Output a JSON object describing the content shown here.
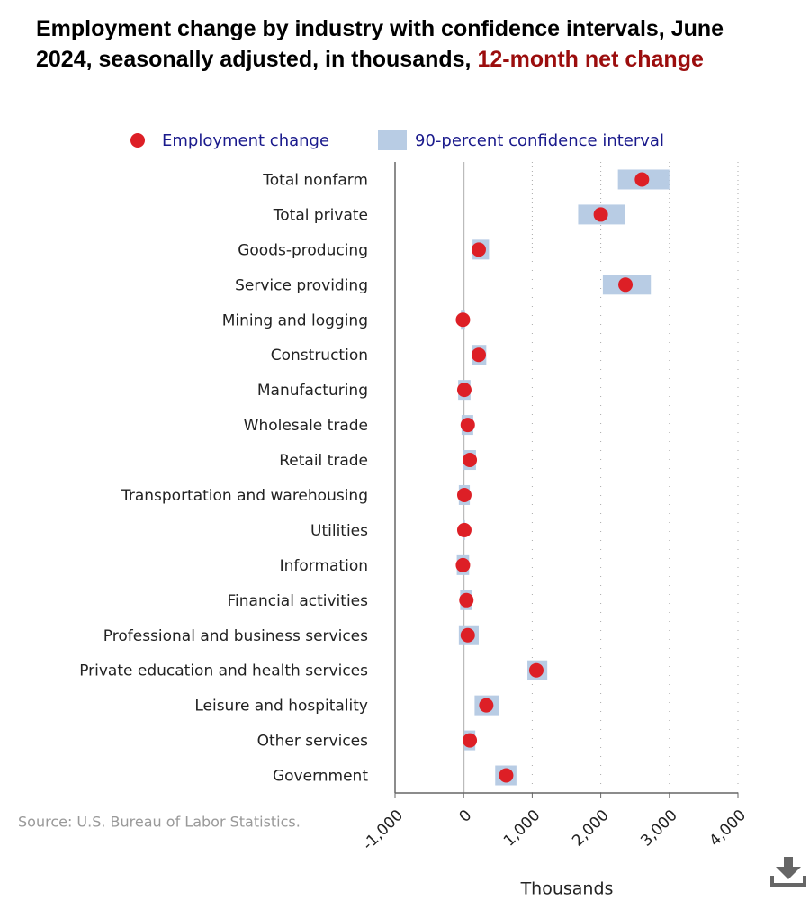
{
  "chart_data": {
    "type": "dot-interval",
    "title": "Employment change by industry with confidence intervals, June 2024, seasonally adjusted, in thousands,",
    "title_highlight": "12-month net change",
    "categories": [
      "Total nonfarm",
      "Total private",
      "Goods-producing",
      "Service providing",
      "Mining and logging",
      "Construction",
      "Manufacturing",
      "Wholesale trade",
      "Retail trade",
      "Transportation and warehousing",
      "Utilities",
      "Information",
      "Financial activities",
      "Professional and business services",
      "Private education and health services",
      "Leisure and hospitality",
      "Other services",
      "Government"
    ],
    "series": [
      {
        "name": "Employment change",
        "color": "#dd1f26",
        "values": [
          2600,
          2000,
          220,
          2360,
          -10,
          220,
          10,
          60,
          90,
          10,
          10,
          -10,
          40,
          60,
          1060,
          330,
          90,
          620
        ]
      },
      {
        "name": "90-percent confidence interval",
        "color": "#b8cce4",
        "low": [
          2250,
          1670,
          130,
          2030,
          -40,
          120,
          -80,
          -30,
          -10,
          -70,
          0,
          -100,
          -50,
          -70,
          930,
          160,
          10,
          460
        ],
        "high": [
          3000,
          2350,
          370,
          2730,
          20,
          330,
          100,
          140,
          180,
          90,
          20,
          80,
          120,
          220,
          1220,
          510,
          170,
          770
        ]
      }
    ],
    "xlim": [
      -1000,
      4000
    ],
    "xticks": [
      {
        "value": -1000,
        "label": "-1,000"
      },
      0,
      {
        "value": 1000,
        "label": "1,000"
      },
      {
        "value": 2000,
        "label": "2,000"
      },
      {
        "value": 3000,
        "label": "3,000"
      },
      {
        "value": 4000,
        "label": "4,000"
      }
    ],
    "xlabel": "Thousands",
    "grid": true,
    "source": "Source: U.S. Bureau of Labor Statistics."
  }
}
